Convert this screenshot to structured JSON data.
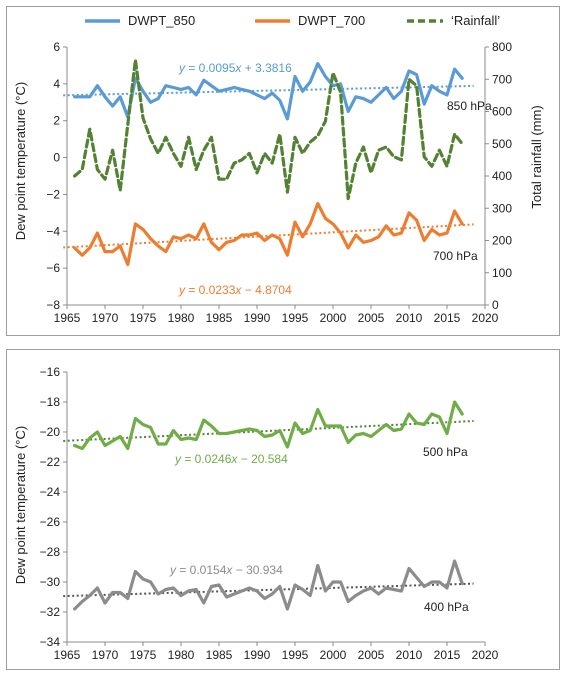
{
  "colors": {
    "blue": "#5b9bd5",
    "orange": "#ed7d31",
    "green_dark": "#548235",
    "green": "#70ad47",
    "grey": "#8c8c8c",
    "axis": "#8c8c8c"
  },
  "chart_data": [
    {
      "type": "line",
      "legend_position": "top",
      "xlabel": "",
      "ylabel": "Dew point temperature (°C)",
      "y2label": "Total rainfall (mm)",
      "xlim": [
        1965,
        2020
      ],
      "ylim": [
        -8,
        6
      ],
      "y2lim": [
        0,
        800
      ],
      "x_ticks": [
        1965,
        1970,
        1975,
        1980,
        1985,
        1990,
        1995,
        2000,
        2005,
        2010,
        2015,
        2020
      ],
      "y_ticks": [
        6,
        4,
        2,
        0,
        -2,
        -4,
        -6,
        -8
      ],
      "y_tick_labels": [
        "6",
        "4",
        "2",
        "0",
        "−2",
        "−4",
        "−6",
        "−8"
      ],
      "y2_ticks": [
        800,
        700,
        600,
        500,
        400,
        300,
        200,
        100,
        0
      ],
      "grid": false,
      "years": [
        1966,
        1967,
        1968,
        1969,
        1970,
        1971,
        1972,
        1973,
        1974,
        1975,
        1976,
        1977,
        1978,
        1979,
        1980,
        1981,
        1982,
        1983,
        1984,
        1985,
        1986,
        1987,
        1988,
        1989,
        1990,
        1991,
        1992,
        1993,
        1994,
        1995,
        1996,
        1997,
        1998,
        1999,
        2000,
        2001,
        2002,
        2003,
        2004,
        2005,
        2006,
        2007,
        2008,
        2009,
        2010,
        2011,
        2012,
        2013,
        2014,
        2015,
        2016,
        2017
      ],
      "series": [
        {
          "name": "DWPT_850",
          "axis": "left",
          "style": "solid",
          "values": [
            3.3,
            3.3,
            3.3,
            3.9,
            3.3,
            2.8,
            3.3,
            2.2,
            4.3,
            3.6,
            3.0,
            3.2,
            3.9,
            3.8,
            3.7,
            3.8,
            3.4,
            4.2,
            3.9,
            3.6,
            3.7,
            3.8,
            3.7,
            3.6,
            3.4,
            3.2,
            3.5,
            3.1,
            2.1,
            4.4,
            3.6,
            4.1,
            5.1,
            4.4,
            3.9,
            4.0,
            2.5,
            3.3,
            3.2,
            3.0,
            3.4,
            3.8,
            3.2,
            3.6,
            4.7,
            4.5,
            2.9,
            3.9,
            3.6,
            3.4,
            4.8,
            4.3
          ]
        },
        {
          "name": "DWPT_700",
          "axis": "left",
          "style": "solid",
          "values": [
            -4.9,
            -5.3,
            -4.9,
            -4.1,
            -5.1,
            -5.1,
            -4.8,
            -5.8,
            -3.6,
            -3.9,
            -4.4,
            -4.8,
            -5.1,
            -4.3,
            -4.4,
            -4.2,
            -4.4,
            -3.6,
            -4.6,
            -5.0,
            -4.6,
            -4.5,
            -4.2,
            -4.2,
            -4.1,
            -4.5,
            -4.2,
            -4.4,
            -5.3,
            -3.5,
            -4.3,
            -3.6,
            -2.5,
            -3.3,
            -3.6,
            -4.1,
            -4.9,
            -4.2,
            -4.6,
            -4.5,
            -4.3,
            -3.7,
            -4.2,
            -4.1,
            -3.0,
            -3.4,
            -4.5,
            -3.9,
            -4.2,
            -4.1,
            -2.9,
            -3.6
          ]
        },
        {
          "name": "‘Rainfall’",
          "axis": "right",
          "style": "dashed",
          "values": [
            400,
            420,
            545,
            420,
            390,
            480,
            355,
            560,
            760,
            580,
            515,
            470,
            520,
            470,
            430,
            520,
            420,
            480,
            520,
            390,
            390,
            440,
            450,
            470,
            410,
            470,
            440,
            530,
            350,
            520,
            470,
            505,
            525,
            570,
            720,
            660,
            330,
            440,
            490,
            410,
            480,
            490,
            460,
            450,
            700,
            680,
            460,
            430,
            480,
            430,
            530,
            500
          ]
        }
      ],
      "trendlines": [
        {
          "series": "DWPT_850",
          "slope": 0.0095,
          "intercept": 3.3816,
          "label_prefix": "y",
          "label_rest": " = 0.0095",
          "label_x": "x",
          "label_suffix": " + 3.3816"
        },
        {
          "series": "DWPT_700",
          "slope": 0.0233,
          "intercept": -4.8704,
          "label_prefix": "y",
          "label_rest": " = 0.0233",
          "label_x": "x",
          "label_suffix": " − 4.8704"
        }
      ],
      "annotations": [
        "850 hPa",
        "700 hPa"
      ]
    },
    {
      "type": "line",
      "xlabel": "",
      "ylabel": "Dew point temperature (°C)",
      "xlim": [
        1965,
        2020
      ],
      "ylim": [
        -34,
        -16
      ],
      "x_ticks": [
        1965,
        1970,
        1975,
        1980,
        1985,
        1990,
        1995,
        2000,
        2005,
        2010,
        2015,
        2020
      ],
      "y_ticks": [
        -16,
        -18,
        -20,
        -22,
        -24,
        -26,
        -28,
        -30,
        -32,
        -34
      ],
      "y_tick_labels": [
        "−16",
        "−18",
        "−20",
        "−22",
        "−24",
        "−26",
        "−28",
        "−30",
        "−32",
        "−34"
      ],
      "grid": false,
      "years": [
        1966,
        1967,
        1968,
        1969,
        1970,
        1971,
        1972,
        1973,
        1974,
        1975,
        1976,
        1977,
        1978,
        1979,
        1980,
        1981,
        1982,
        1983,
        1984,
        1985,
        1986,
        1987,
        1988,
        1989,
        1990,
        1991,
        1992,
        1993,
        1994,
        1995,
        1996,
        1997,
        1998,
        1999,
        2000,
        2001,
        2002,
        2003,
        2004,
        2005,
        2006,
        2007,
        2008,
        2009,
        2010,
        2011,
        2012,
        2013,
        2014,
        2015,
        2016,
        2017
      ],
      "series": [
        {
          "name": "500 hPa",
          "axis": "left",
          "style": "solid",
          "values": [
            -20.9,
            -21.1,
            -20.4,
            -20.0,
            -20.9,
            -20.6,
            -20.3,
            -21.1,
            -19.1,
            -19.5,
            -19.7,
            -20.8,
            -20.8,
            -19.9,
            -20.5,
            -20.4,
            -20.5,
            -19.2,
            -19.6,
            -20.1,
            -20.1,
            -20.0,
            -19.9,
            -19.8,
            -19.9,
            -20.3,
            -20.2,
            -19.9,
            -21.0,
            -19.4,
            -20.1,
            -19.9,
            -18.5,
            -19.6,
            -19.6,
            -19.6,
            -20.7,
            -20.2,
            -20.1,
            -20.3,
            -19.9,
            -19.5,
            -19.9,
            -19.8,
            -18.8,
            -19.4,
            -19.5,
            -18.8,
            -19.0,
            -20.1,
            -18.0,
            -18.8
          ]
        },
        {
          "name": "400 hPa",
          "axis": "left",
          "style": "solid",
          "values": [
            -31.8,
            -31.3,
            -30.9,
            -30.4,
            -31.4,
            -30.7,
            -30.7,
            -31.1,
            -29.3,
            -29.8,
            -30.0,
            -30.8,
            -30.5,
            -30.4,
            -30.9,
            -30.6,
            -30.5,
            -31.4,
            -30.3,
            -30.2,
            -31.0,
            -30.8,
            -30.6,
            -30.4,
            -30.6,
            -31.1,
            -30.8,
            -30.3,
            -31.8,
            -30.2,
            -30.5,
            -30.9,
            -28.9,
            -30.6,
            -30.0,
            -30.0,
            -31.3,
            -30.9,
            -30.6,
            -30.4,
            -30.8,
            -30.4,
            -30.5,
            -30.6,
            -29.1,
            -29.7,
            -30.3,
            -30.0,
            -30.0,
            -30.4,
            -28.6,
            -30.1
          ]
        }
      ],
      "trendlines": [
        {
          "series": "500 hPa",
          "slope": 0.0246,
          "intercept": -20.584,
          "label_prefix": "y",
          "label_rest": " = 0.0246",
          "label_x": "x",
          "label_suffix": " − 20.584"
        },
        {
          "series": "400 hPa",
          "slope": 0.0154,
          "intercept": -30.934,
          "label_prefix": "y",
          "label_rest": " = 0.0154",
          "label_x": "x",
          "label_suffix": " − 30.934"
        }
      ],
      "annotations": [
        "500 hPa",
        "400 hPa"
      ]
    }
  ]
}
